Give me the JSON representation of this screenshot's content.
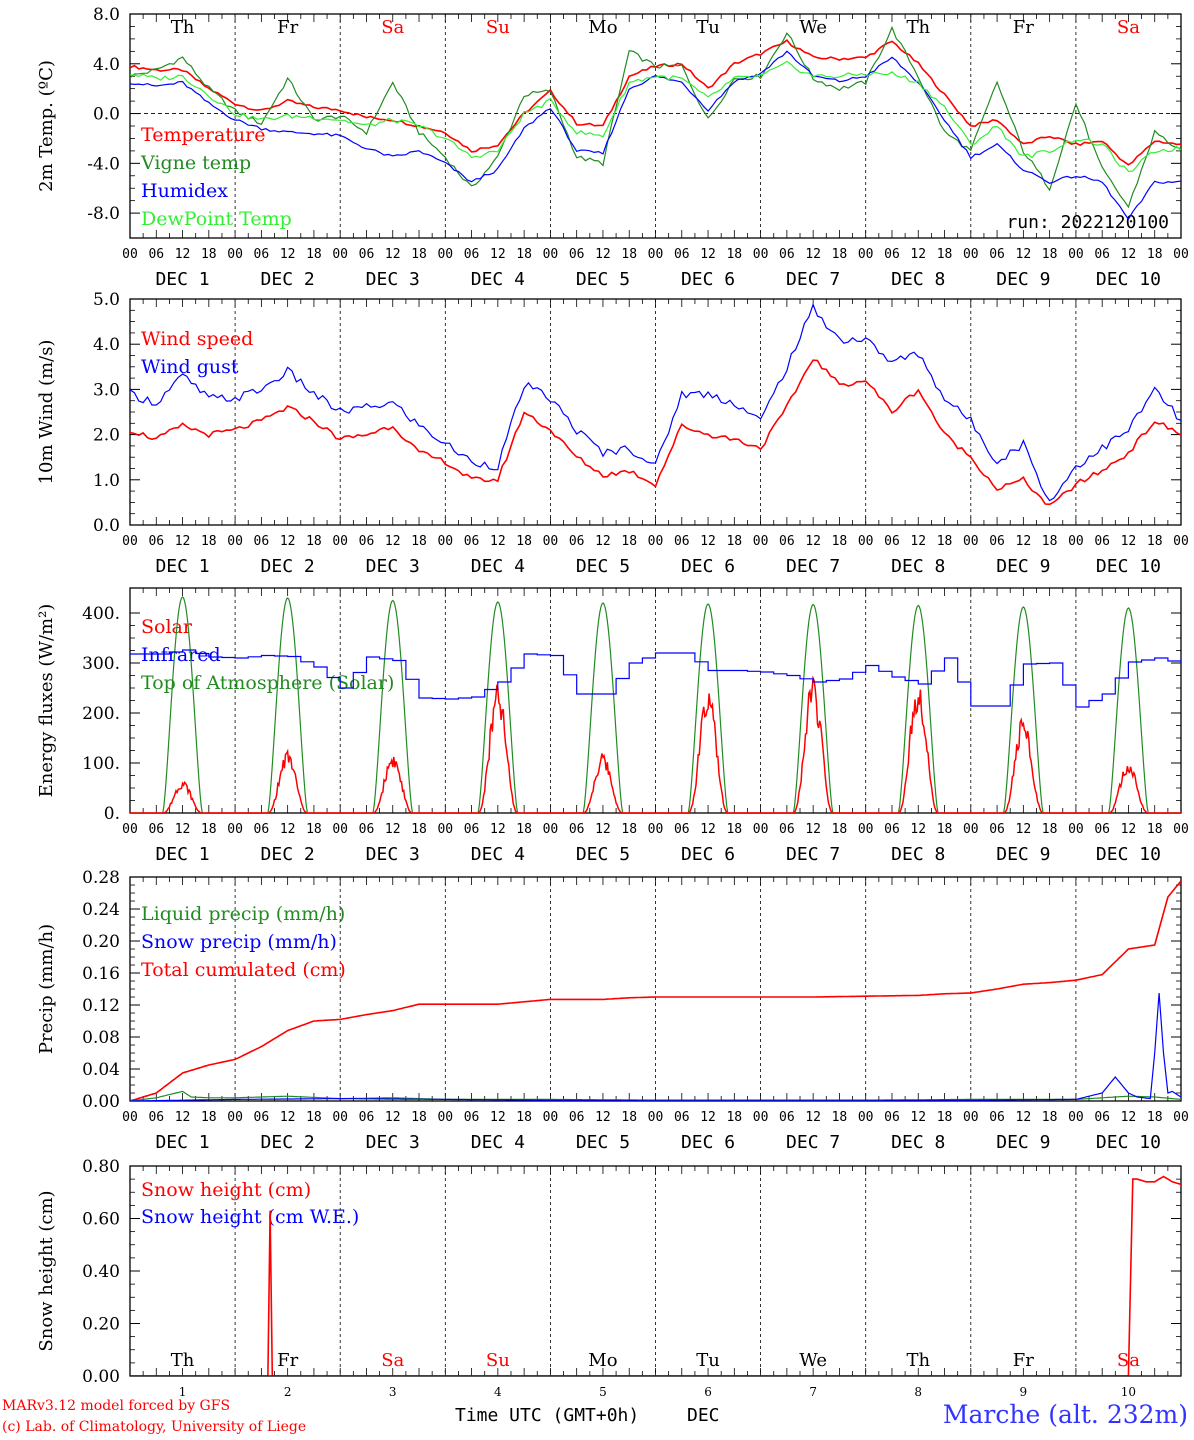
{
  "chart_data": [
    {
      "type": "line",
      "ylabel": "2m Temp. (ºC)",
      "ylim": [
        -10,
        8
      ],
      "yticks": [
        "8.0",
        "4.0",
        "0.0",
        "-4.0",
        "-8.0"
      ],
      "yticks_values": [
        8,
        4,
        0,
        -4,
        -8
      ],
      "zero_line": true,
      "run_label": "run: 2022120100",
      "legend": [
        "Temperature",
        "Vigne temp",
        "Humidex",
        "DewPoint Temp"
      ],
      "series": [
        {
          "name": "Temperature",
          "color": "#ff0000",
          "hours": [
            0,
            6,
            12,
            18,
            24,
            30,
            36,
            42,
            48,
            54,
            60,
            66,
            72,
            78,
            84,
            90,
            96,
            102,
            108,
            114,
            120,
            126,
            132,
            138,
            144,
            150,
            156,
            162,
            168,
            174,
            180,
            186,
            192,
            198,
            204,
            210,
            216,
            222,
            228,
            234,
            240
          ],
          "values": [
            3.8,
            3.5,
            3.5,
            2.0,
            0.8,
            0.2,
            1.0,
            0.5,
            0.3,
            -0.3,
            -0.5,
            -1.0,
            -1.5,
            -3.0,
            -2.5,
            0.0,
            1.8,
            -0.8,
            -1.0,
            3.0,
            3.8,
            4.0,
            2.0,
            4.0,
            4.8,
            5.8,
            4.5,
            4.4,
            4.5,
            5.8,
            4.0,
            1.5,
            -1.0,
            -0.5,
            -2.5,
            -1.8,
            -2.5,
            -2.2,
            -4.2,
            -2.2,
            -2.5
          ]
        },
        {
          "name": "Vigne temp",
          "color": "#228b22",
          "hours": [
            0,
            6,
            12,
            18,
            24,
            30,
            36,
            42,
            48,
            54,
            60,
            66,
            72,
            78,
            84,
            90,
            96,
            102,
            108,
            114,
            120,
            126,
            132,
            138,
            144,
            150,
            156,
            162,
            168,
            174,
            180,
            186,
            192,
            198,
            204,
            210,
            216,
            222,
            228,
            234,
            240
          ],
          "values": [
            3.0,
            3.5,
            4.5,
            2.0,
            0.2,
            -0.8,
            2.8,
            -0.5,
            -0.2,
            -1.5,
            2.5,
            -1.5,
            -3.5,
            -6.0,
            -3.5,
            1.5,
            1.8,
            -3.5,
            -4.0,
            5.0,
            3.8,
            3.8,
            -0.5,
            2.8,
            3.0,
            6.5,
            2.8,
            2.0,
            2.5,
            6.8,
            3.0,
            -1.5,
            -3.0,
            2.5,
            -3.0,
            -6.0,
            0.8,
            -4.5,
            -7.5,
            -1.5,
            -3.0
          ]
        },
        {
          "name": "Humidex",
          "color": "#0000ff",
          "hours": [
            0,
            6,
            12,
            18,
            24,
            30,
            36,
            42,
            48,
            54,
            60,
            66,
            72,
            78,
            84,
            90,
            96,
            102,
            108,
            114,
            120,
            126,
            132,
            138,
            144,
            150,
            156,
            162,
            168,
            174,
            180,
            186,
            192,
            198,
            204,
            210,
            216,
            222,
            228,
            234,
            240
          ],
          "values": [
            2.5,
            2.2,
            2.5,
            0.8,
            -0.5,
            -1.2,
            -1.5,
            -1.6,
            -1.8,
            -2.8,
            -3.5,
            -3.0,
            -4.0,
            -5.5,
            -4.5,
            -1.2,
            0.5,
            -3.0,
            -3.2,
            2.0,
            3.0,
            2.5,
            0.3,
            2.6,
            3.2,
            5.0,
            3.0,
            2.6,
            3.0,
            4.5,
            2.5,
            -0.5,
            -3.5,
            -2.5,
            -4.5,
            -5.5,
            -5.0,
            -5.5,
            -8.5,
            -5.5,
            -5.5
          ]
        },
        {
          "name": "DewPoint Temp",
          "color": "#33ee33",
          "hours": [
            0,
            6,
            12,
            18,
            24,
            30,
            36,
            42,
            48,
            54,
            60,
            66,
            72,
            78,
            84,
            90,
            96,
            102,
            108,
            114,
            120,
            126,
            132,
            138,
            144,
            150,
            156,
            162,
            168,
            174,
            180,
            186,
            192,
            198,
            204,
            210,
            216,
            222,
            228,
            234,
            240
          ],
          "values": [
            3.2,
            2.8,
            3.0,
            1.5,
            0.0,
            -0.5,
            -0.2,
            -0.3,
            -0.5,
            -1.0,
            -0.5,
            -1.0,
            -2.0,
            -3.5,
            -3.0,
            0.0,
            1.0,
            -1.5,
            -1.8,
            2.5,
            3.0,
            2.8,
            1.2,
            2.8,
            3.0,
            4.0,
            3.0,
            3.0,
            3.2,
            3.2,
            2.5,
            0.5,
            -2.5,
            -1.0,
            -3.5,
            -3.0,
            -2.0,
            -2.5,
            -4.8,
            -3.0,
            -2.8
          ]
        }
      ]
    },
    {
      "type": "line",
      "ylabel": "10m Wind (m/s)",
      "ylim": [
        0,
        5
      ],
      "yticks": [
        "5.0",
        "4.0",
        "3.0",
        "2.0",
        "1.0",
        "0.0"
      ],
      "yticks_values": [
        5,
        4,
        3,
        2,
        1,
        0
      ],
      "legend": [
        "Wind speed",
        "Wind gust"
      ],
      "series": [
        {
          "name": "Wind speed",
          "color": "#ff0000",
          "hours": [
            0,
            6,
            12,
            18,
            24,
            30,
            36,
            42,
            48,
            54,
            60,
            66,
            72,
            78,
            84,
            90,
            96,
            102,
            108,
            114,
            120,
            126,
            132,
            138,
            144,
            150,
            156,
            162,
            168,
            174,
            180,
            186,
            192,
            198,
            204,
            210,
            216,
            222,
            228,
            234,
            240
          ],
          "values": [
            2.1,
            1.9,
            2.2,
            2.0,
            2.1,
            2.3,
            2.6,
            2.3,
            1.9,
            2.0,
            2.2,
            1.6,
            1.4,
            1.0,
            1.0,
            2.5,
            2.1,
            1.5,
            1.1,
            1.2,
            0.9,
            2.2,
            2.0,
            1.9,
            1.7,
            2.6,
            3.7,
            3.1,
            3.2,
            2.5,
            3.0,
            2.0,
            1.5,
            0.8,
            1.0,
            0.4,
            0.9,
            1.2,
            1.6,
            2.3,
            2.0
          ]
        },
        {
          "name": "Wind gust",
          "color": "#0000ff",
          "hours": [
            0,
            6,
            12,
            18,
            24,
            30,
            36,
            42,
            48,
            54,
            60,
            66,
            72,
            78,
            84,
            90,
            96,
            102,
            108,
            114,
            120,
            126,
            132,
            138,
            144,
            150,
            156,
            162,
            168,
            174,
            180,
            186,
            192,
            198,
            204,
            210,
            216,
            222,
            228,
            234,
            240
          ],
          "values": [
            2.9,
            2.7,
            3.3,
            2.8,
            2.8,
            3.0,
            3.4,
            2.9,
            2.5,
            2.6,
            2.7,
            2.2,
            1.8,
            1.4,
            1.3,
            3.1,
            2.8,
            2.1,
            1.6,
            1.7,
            1.3,
            2.9,
            2.9,
            2.7,
            2.3,
            3.5,
            4.8,
            4.1,
            4.1,
            3.6,
            3.8,
            2.8,
            2.3,
            1.4,
            1.8,
            0.5,
            1.3,
            1.7,
            2.1,
            3.0,
            2.3
          ]
        }
      ]
    },
    {
      "type": "line",
      "ylabel": "Energy fluxes (W/m²)",
      "ylim": [
        0,
        450
      ],
      "yticks": [
        "400.",
        "300.",
        "200.",
        "100.",
        "0."
      ],
      "yticks_values": [
        400,
        300,
        200,
        100,
        0
      ],
      "legend": [
        "Solar",
        "Infrared",
        "Top of Atmosphere (Solar)"
      ],
      "toa_daily_peak": [
        432,
        430,
        425,
        422,
        420,
        418,
        417,
        415,
        412,
        410
      ],
      "solar_daily_peak": [
        58,
        110,
        105,
        225,
        105,
        220,
        240,
        240,
        170,
        90
      ],
      "series": [
        {
          "name": "Infrared",
          "color": "#0000ff",
          "hours": [
            0,
            6,
            12,
            18,
            24,
            30,
            36,
            42,
            48,
            54,
            60,
            66,
            72,
            78,
            84,
            90,
            96,
            102,
            108,
            114,
            120,
            126,
            132,
            138,
            144,
            150,
            156,
            162,
            168,
            174,
            180,
            186,
            192,
            198,
            204,
            210,
            216,
            222,
            228,
            234,
            240
          ],
          "values": [
            318,
            318,
            326,
            312,
            310,
            315,
            313,
            292,
            250,
            312,
            305,
            230,
            228,
            232,
            262,
            318,
            315,
            238,
            238,
            300,
            320,
            320,
            285,
            285,
            282,
            275,
            262,
            268,
            295,
            272,
            258,
            310,
            214,
            214,
            298,
            300,
            212,
            238,
            302,
            310,
            298
          ]
        }
      ]
    },
    {
      "type": "line",
      "ylabel": "Precip (mm/h)",
      "ylim": [
        0,
        0.28
      ],
      "yticks": [
        "0.28",
        "0.24",
        "0.20",
        "0.16",
        "0.12",
        "0.08",
        "0.04",
        "0.00"
      ],
      "yticks_values": [
        0.28,
        0.24,
        0.2,
        0.16,
        0.12,
        0.08,
        0.04,
        0.0
      ],
      "legend": [
        "Liquid precip (mm/h)",
        "Snow precip (mm/h)",
        "Total cumulated (cm)"
      ],
      "series": [
        {
          "name": "Total cumulated (cm)",
          "color": "#ff0000",
          "hours": [
            0,
            6,
            12,
            18,
            24,
            30,
            36,
            42,
            48,
            54,
            60,
            66,
            72,
            78,
            84,
            90,
            96,
            102,
            108,
            114,
            120,
            132,
            144,
            156,
            168,
            180,
            186,
            192,
            198,
            204,
            210,
            216,
            222,
            228,
            234,
            237,
            240
          ],
          "values": [
            0.0,
            0.01,
            0.035,
            0.045,
            0.052,
            0.068,
            0.088,
            0.1,
            0.102,
            0.108,
            0.113,
            0.121,
            0.121,
            0.121,
            0.121,
            0.124,
            0.127,
            0.127,
            0.127,
            0.129,
            0.13,
            0.13,
            0.13,
            0.13,
            0.131,
            0.132,
            0.134,
            0.135,
            0.14,
            0.146,
            0.148,
            0.151,
            0.158,
            0.19,
            0.195,
            0.255,
            0.275
          ]
        },
        {
          "name": "Liquid precip (mm/h)",
          "color": "#228b22",
          "hours": [
            0,
            6,
            12,
            14,
            18,
            24,
            36,
            48,
            60,
            72,
            96,
            120,
            144,
            168,
            192,
            216,
            228,
            234,
            240
          ],
          "values": [
            0.0,
            0.004,
            0.012,
            0.005,
            0.004,
            0.004,
            0.006,
            0.003,
            0.004,
            0.002,
            0.002,
            0.001,
            0.001,
            0.001,
            0.002,
            0.002,
            0.006,
            0.005,
            0.002
          ]
        },
        {
          "name": "Snow precip (mm/h)",
          "color": "#0000ff",
          "hours": [
            0,
            24,
            48,
            96,
            120,
            192,
            216,
            222,
            225,
            228,
            230,
            233,
            234,
            235,
            236,
            237,
            238,
            240
          ],
          "values": [
            0.0,
            0.002,
            0.003,
            0.001,
            0.001,
            0.001,
            0.002,
            0.01,
            0.03,
            0.01,
            0.005,
            0.003,
            0.06,
            0.135,
            0.06,
            0.01,
            0.012,
            0.005
          ]
        }
      ]
    },
    {
      "type": "line",
      "ylabel": "Snow height (cm)",
      "ylim": [
        0,
        0.8
      ],
      "yticks": [
        "0.80",
        "0.60",
        "0.40",
        "0.20",
        "0.00"
      ],
      "yticks_values": [
        0.8,
        0.6,
        0.4,
        0.2,
        0.0
      ],
      "legend": [
        "Snow height (cm)",
        "Snow height (cm W.E.)"
      ],
      "series": [
        {
          "name": "Snow height (cm)",
          "color": "#ff0000",
          "hours": [
            0,
            31.5,
            32,
            32.5,
            33,
            228,
            229,
            230,
            232,
            234,
            236,
            238,
            240
          ],
          "values": [
            0,
            0,
            0.63,
            0.0,
            0,
            0,
            0.75,
            0.75,
            0.74,
            0.74,
            0.76,
            0.74,
            0.73
          ]
        },
        {
          "name": "Snow height (cm W.E.)",
          "color": "#0000ff",
          "hours": [
            0,
            240
          ],
          "values": [
            0,
            0
          ]
        }
      ]
    }
  ],
  "days": {
    "weekday": [
      "Th",
      "Fr",
      "Sa",
      "Su",
      "Mo",
      "Tu",
      "We",
      "Th",
      "Fr",
      "Sa"
    ],
    "weekday_color": [
      "#000000",
      "#000000",
      "#ff0000",
      "#ff0000",
      "#000000",
      "#000000",
      "#000000",
      "#000000",
      "#000000",
      "#ff0000"
    ],
    "date_labels": [
      "DEC  1",
      "DEC  2",
      "DEC  3",
      "DEC  4",
      "DEC  5",
      "DEC  6",
      "DEC  7",
      "DEC  8",
      "DEC  9",
      "DEC 10"
    ],
    "hour_labels": [
      "00",
      "06",
      "12",
      "18"
    ],
    "end_hour_label": "00",
    "day_numbers": [
      "1",
      "2",
      "3",
      "4",
      "5",
      "6",
      "7",
      "8",
      "9",
      "10"
    ]
  },
  "footer": {
    "model_line1": "MARv3.12 model forced by GFS",
    "model_line2": "(c) Lab. of Climatology, University of Liege",
    "xlabel": "Time UTC (GMT+0h)",
    "xlabel_unit": "DEC",
    "station": "Marche (alt. 232m)"
  },
  "colors": {
    "red": "#ff0000",
    "green": "#228b22",
    "blue": "#0000ff",
    "lightgreen": "#33ee33"
  }
}
